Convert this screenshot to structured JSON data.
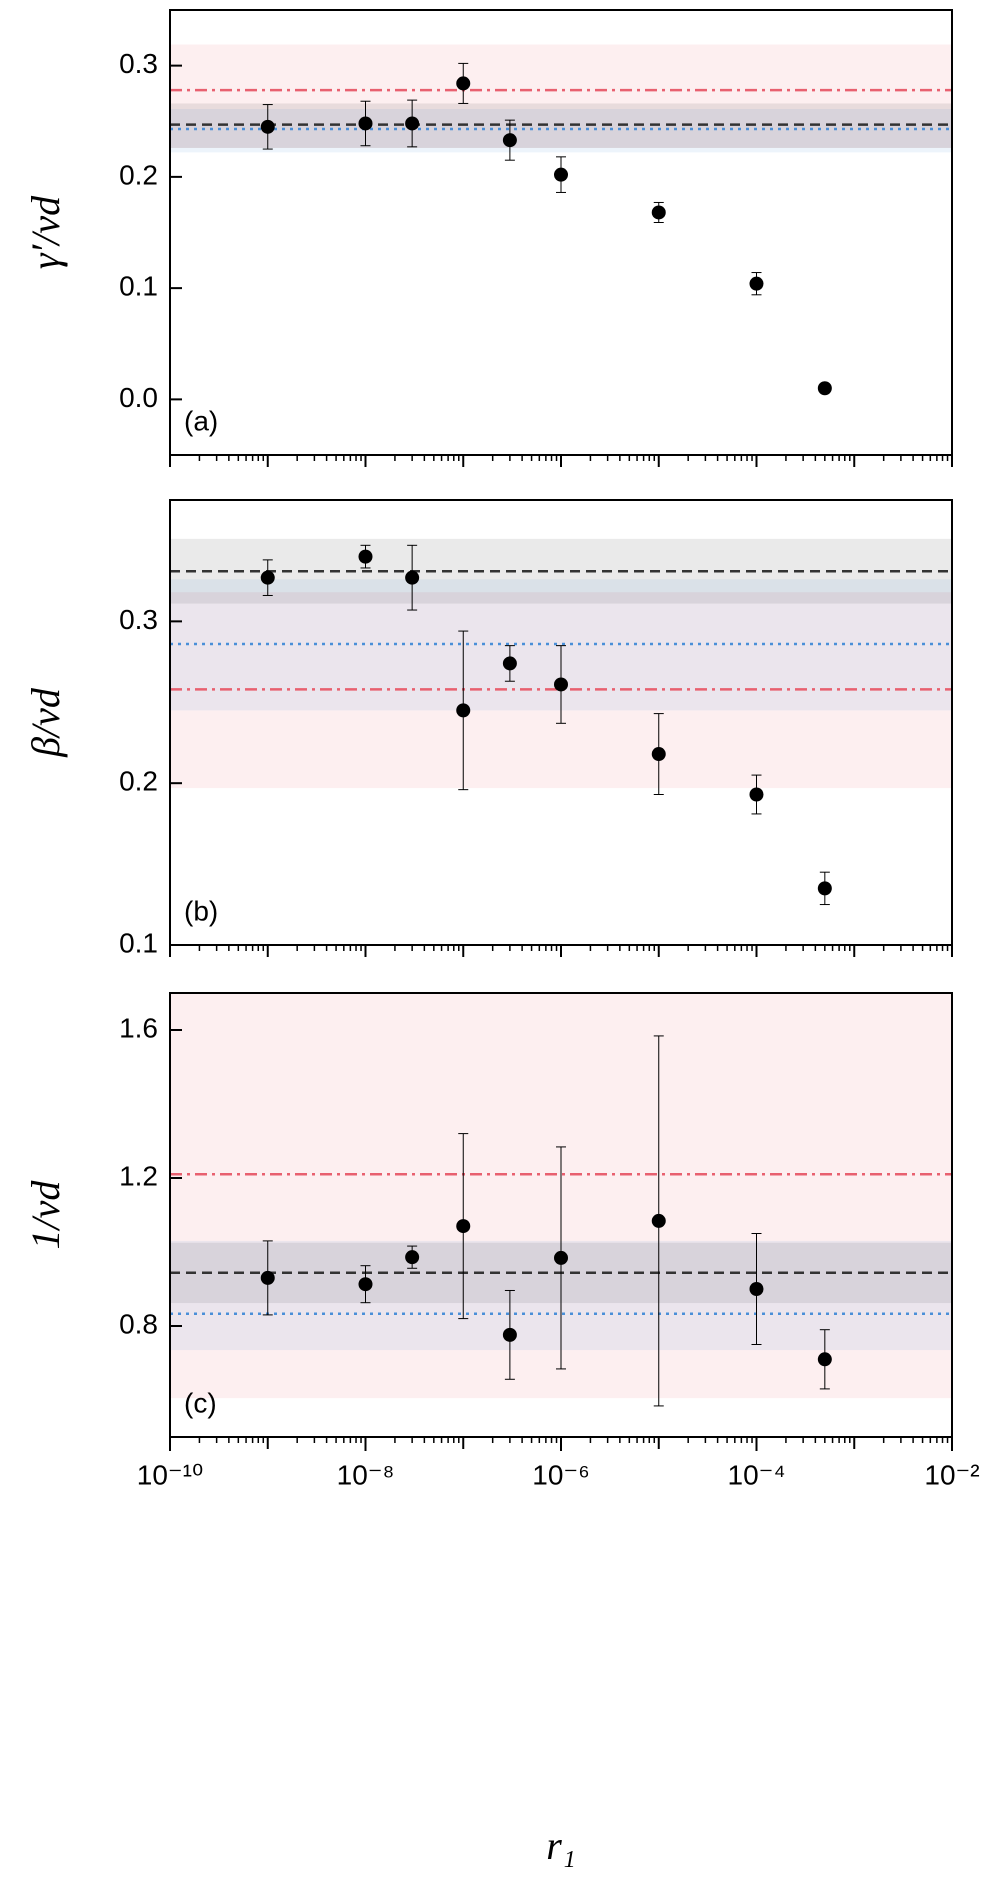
{
  "chart_data": [
    {
      "type": "scatter",
      "panel_label": "(a)",
      "ylabel": "γ′/νd",
      "log_x": true,
      "xlim": [
        1e-10,
        0.01
      ],
      "ylim": [
        -0.05,
        0.35
      ],
      "yticks": [
        {
          "value": 0,
          "label": "0.0"
        },
        0.1,
        0.2,
        0.3
      ],
      "x": [
        1e-09,
        1e-08,
        3e-08,
        1e-07,
        3e-07,
        1e-06,
        1e-05,
        0.0001,
        0.0005
      ],
      "values": [
        0.245,
        0.248,
        0.248,
        0.284,
        0.233,
        0.202,
        0.168,
        0.104,
        0.01
      ],
      "errors": [
        0.02,
        0.02,
        0.021,
        0.018,
        0.018,
        0.016,
        0.009,
        0.01,
        0.002
      ],
      "color": "#000000",
      "reference_lines": [
        {
          "value": 0.278,
          "band": [
            0.226,
            0.319
          ],
          "color": "#e8606f",
          "style": "dashdot"
        },
        {
          "value": 0.247,
          "band": [
            0.226,
            0.266
          ],
          "color": "#333333",
          "style": "dashed"
        },
        {
          "value": 0.243,
          "band": [
            0.222,
            0.261
          ],
          "color": "#4a8fd8",
          "style": "dotted"
        }
      ]
    },
    {
      "type": "scatter",
      "panel_label": "(b)",
      "ylabel": "β/νd",
      "log_x": true,
      "xlim": [
        1e-10,
        0.01
      ],
      "ylim": [
        0.1,
        0.375
      ],
      "yticks": [
        0.1,
        0.2,
        0.3
      ],
      "x": [
        1e-09,
        1e-08,
        3e-08,
        1e-07,
        3e-07,
        1e-06,
        1e-05,
        0.0001,
        0.0005
      ],
      "values": [
        0.327,
        0.34,
        0.327,
        0.245,
        0.274,
        0.261,
        0.218,
        0.193,
        0.135
      ],
      "errors": [
        0.011,
        0.007,
        0.02,
        0.049,
        0.011,
        0.024,
        0.025,
        0.012,
        0.01
      ],
      "color": "#000000",
      "reference_lines": [
        {
          "value": 0.258,
          "band": [
            0.197,
            0.318
          ],
          "color": "#e8606f",
          "style": "dashdot"
        },
        {
          "value": 0.331,
          "band": [
            0.311,
            0.351
          ],
          "color": "#333333",
          "style": "dashed"
        },
        {
          "value": 0.286,
          "band": [
            0.245,
            0.326
          ],
          "color": "#4a8fd8",
          "style": "dotted"
        }
      ]
    },
    {
      "type": "scatter",
      "panel_label": "(c)",
      "ylabel": "1/νd",
      "xlabel": "r₁",
      "log_x": true,
      "xlim": [
        1e-10,
        0.01
      ],
      "ylim": [
        0.5,
        1.7
      ],
      "yticks": [
        0.8,
        1.2,
        1.6
      ],
      "xticks": [
        {
          "value": 1e-10,
          "label": "10⁻¹⁰"
        },
        {
          "value": 1e-08,
          "label": "10⁻⁸"
        },
        {
          "value": 1e-06,
          "label": "10⁻⁶"
        },
        {
          "value": 0.0001,
          "label": "10⁻⁴"
        },
        {
          "value": 0.01,
          "label": "10⁻²"
        }
      ],
      "x": [
        1e-09,
        1e-08,
        3e-08,
        1e-07,
        3e-07,
        1e-06,
        1e-05,
        0.0001,
        0.0005
      ],
      "values": [
        0.93,
        0.913,
        0.986,
        1.07,
        0.776,
        0.984,
        1.084,
        0.9,
        0.71
      ],
      "errors": [
        0.1,
        0.05,
        0.03,
        0.25,
        0.12,
        0.3,
        0.5,
        0.15,
        0.08
      ],
      "color": "#000000",
      "reference_lines": [
        {
          "value": 1.21,
          "band": [
            0.605,
            1.7
          ],
          "color": "#e8606f",
          "style": "dashdot"
        },
        {
          "value": 0.944,
          "band": [
            0.862,
            1.025
          ],
          "color": "#333333",
          "style": "dashed"
        },
        {
          "value": 0.833,
          "band": [
            0.735,
            1.03
          ],
          "color": "#4a8fd8",
          "style": "dotted"
        }
      ]
    }
  ]
}
